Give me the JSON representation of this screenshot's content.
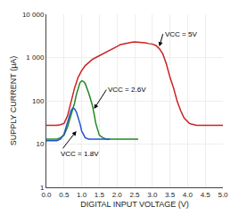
{
  "chart_data": {
    "type": "line",
    "xlabel": "DIGITAL INPUT VOLTAGE (V)",
    "ylabel": "SUPPLY CURRENT (μA)",
    "log": "y",
    "grid": true,
    "xlim": [
      0,
      5.0
    ],
    "ylim": [
      1,
      10000
    ],
    "xticks": [
      {
        "value": 0,
        "label": "0.0"
      },
      0.5,
      {
        "value": 1,
        "label": "1.0"
      },
      1.5,
      {
        "value": 2,
        "label": "2.0"
      },
      2.5,
      {
        "value": 3,
        "label": "3.0"
      },
      3.5,
      {
        "value": 4,
        "label": "4.0"
      },
      4.5,
      {
        "value": 5,
        "label": "5.0"
      }
    ],
    "yticks": [
      1,
      10,
      100,
      {
        "value": 1000,
        "label": "1 000"
      },
      {
        "value": 10000,
        "label": "10 000"
      }
    ],
    "series": [
      {
        "color": "#cc2222",
        "x": [
          0.0,
          0.1,
          0.2,
          0.3,
          0.4,
          0.5,
          0.6,
          0.7,
          0.8,
          0.9,
          1.0,
          1.1,
          1.2,
          1.3,
          1.4,
          1.5,
          1.6,
          1.7,
          1.8,
          1.9,
          2.0,
          2.1,
          2.2,
          2.3,
          2.4,
          2.5,
          2.6,
          2.7,
          2.8,
          2.9,
          3.0,
          3.1,
          3.2,
          3.3,
          3.4,
          3.5,
          3.6,
          3.7,
          3.8,
          3.9,
          4.0,
          4.05,
          4.1,
          4.15,
          4.2,
          4.25,
          4.3,
          4.35,
          4.4,
          4.5,
          4.6,
          4.7,
          4.8,
          4.9,
          5.0
        ],
        "values": [
          27,
          27,
          27,
          27,
          28,
          30,
          45,
          100,
          200,
          350,
          500,
          650,
          780,
          900,
          1000,
          1100,
          1200,
          1300,
          1450,
          1600,
          1800,
          2000,
          2100,
          2200,
          2250,
          2300,
          2280,
          2250,
          2180,
          2100,
          2050,
          1900,
          1600,
          1200,
          700,
          350,
          200,
          100,
          60,
          40,
          32,
          30,
          29,
          28,
          27,
          27,
          27,
          27,
          27,
          27,
          27,
          27,
          27,
          27,
          27
        ]
      },
      {
        "color": "#228822",
        "x": [
          0.0,
          0.1,
          0.2,
          0.3,
          0.4,
          0.5,
          0.6,
          0.7,
          0.8,
          0.85,
          0.9,
          0.95,
          1.0,
          1.05,
          1.1,
          1.15,
          1.2,
          1.25,
          1.3,
          1.35,
          1.4,
          1.5,
          1.6,
          1.7,
          1.8,
          1.9,
          2.0,
          2.1,
          2.2,
          2.3,
          2.4,
          2.5,
          2.6
        ],
        "values": [
          13,
          13,
          13,
          13,
          14,
          16,
          25,
          45,
          90,
          140,
          200,
          260,
          290,
          280,
          250,
          200,
          150,
          110,
          80,
          50,
          30,
          16,
          14,
          13,
          13,
          13,
          13,
          13,
          13,
          13,
          13,
          13,
          13
        ]
      },
      {
        "color": "#2255cc",
        "x": [
          0.0,
          0.1,
          0.2,
          0.3,
          0.4,
          0.5,
          0.6,
          0.65,
          0.7,
          0.75,
          0.8,
          0.85,
          0.9,
          0.95,
          1.0,
          1.05,
          1.1,
          1.2,
          1.3,
          1.4,
          1.5,
          1.6,
          1.7,
          1.8
        ],
        "values": [
          12,
          12,
          12,
          12,
          13,
          17,
          32,
          45,
          60,
          68,
          65,
          55,
          42,
          30,
          20,
          16,
          14,
          13,
          13,
          13,
          13,
          13,
          13,
          13
        ]
      }
    ],
    "annotations": [
      {
        "text": "VCC = 5V",
        "x": 3.2,
        "y": 1800,
        "text_x": 3.3,
        "text_y": 3500
      },
      {
        "text": "VCC = 2.6V",
        "x": 1.35,
        "y": 65,
        "text_x": 1.7,
        "text_y": 180
      },
      {
        "text": "VCC = 1.8V",
        "x": 0.85,
        "y": 20,
        "text_x": 0.35,
        "text_y": 6
      }
    ]
  }
}
